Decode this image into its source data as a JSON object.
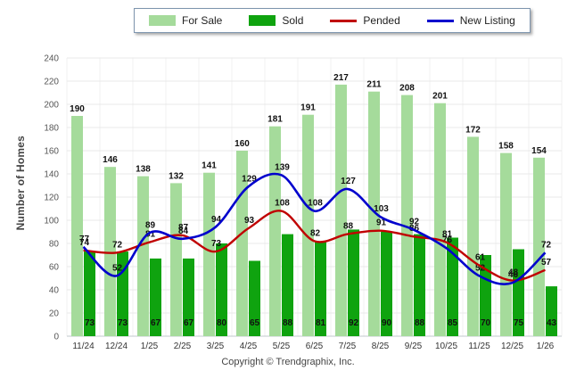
{
  "legend": {
    "items": [
      {
        "label": "For Sale",
        "type": "swatch",
        "color": "#A5DB9B"
      },
      {
        "label": "Sold",
        "type": "swatch",
        "color": "#0FA30F"
      },
      {
        "label": "Pended",
        "type": "line",
        "color": "#C00000"
      },
      {
        "label": "New Listing",
        "type": "line",
        "color": "#0000CD"
      }
    ]
  },
  "ylabel": "Number of Homes",
  "footer": "Copyright © Trendgraphix, Inc.",
  "chart_data": {
    "type": "bar",
    "subtype": "grouped bars with smoothed overlay lines",
    "categories": [
      "11/24",
      "12/24",
      "1/25",
      "2/25",
      "3/25",
      "4/25",
      "5/25",
      "6/25",
      "7/25",
      "8/25",
      "9/25",
      "10/25",
      "11/25",
      "12/25",
      "1/26"
    ],
    "series": [
      {
        "name": "For Sale",
        "type": "bar",
        "color": "#A5DB9B",
        "values": [
          190,
          146,
          138,
          132,
          141,
          160,
          181,
          191,
          217,
          211,
          208,
          201,
          172,
          158,
          154
        ]
      },
      {
        "name": "Sold",
        "type": "bar",
        "color": "#0FA30F",
        "values": [
          73,
          73,
          67,
          67,
          80,
          65,
          88,
          81,
          92,
          90,
          88,
          85,
          70,
          75,
          43
        ]
      },
      {
        "name": "Pended",
        "type": "line",
        "color": "#C00000",
        "values": [
          74,
          72,
          81,
          87,
          73,
          93,
          108,
          82,
          88,
          91,
          86,
          81,
          61,
          48,
          57
        ]
      },
      {
        "name": "New Listing",
        "type": "line",
        "color": "#0000CD",
        "values": [
          77,
          52,
          89,
          84,
          94,
          129,
          139,
          108,
          127,
          103,
          92,
          76,
          52,
          46,
          72
        ]
      }
    ],
    "title": "",
    "xlabel": "",
    "ylabel": "Number of Homes",
    "ylim": [
      0,
      240
    ],
    "ytick_step": 20,
    "grid": true,
    "legend_position": "top"
  }
}
